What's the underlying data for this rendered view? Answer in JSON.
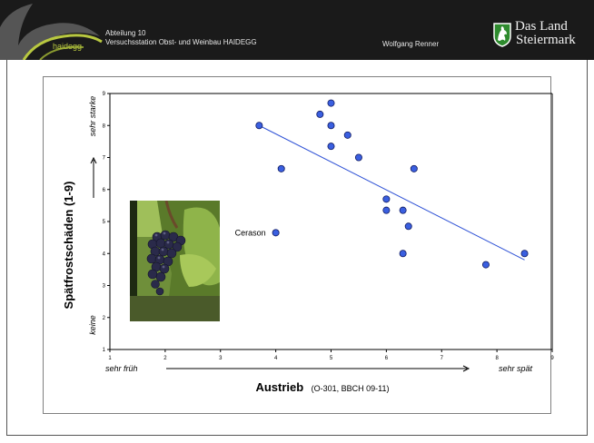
{
  "header": {
    "logo_text": "haidegg",
    "department_line1": "Abteilung 10",
    "department_line2": "Versuchsstation Obst- und Weinbau HAIDEGG",
    "author": "Wolfgang Renner",
    "state_logo_line1": "Das Land",
    "state_logo_line2": "Steiermark"
  },
  "photo": {
    "subject": "grape cluster on vine"
  },
  "chart_data": {
    "type": "scatter",
    "title": "",
    "xlabel": "Austrieb",
    "xlabel_suffix": "(O-301, BBCH 09-11)",
    "ylabel": "Spätfrostschäden  (1-9)",
    "x_low_label": "sehr früh",
    "x_high_label": "sehr spät",
    "y_low_label": "keine",
    "y_high_label": "sehr starke",
    "xlim": [
      1,
      9
    ],
    "ylim": [
      1,
      9
    ],
    "x_ticks": [
      "1",
      "2",
      "3",
      "4",
      "5",
      "6",
      "7",
      "8",
      "9"
    ],
    "y_ticks": [
      "1",
      "2",
      "3",
      "4",
      "5",
      "6",
      "7",
      "8",
      "9"
    ],
    "grid": false,
    "series": [
      {
        "marker_color": "#3a5fe0",
        "points": [
          {
            "x": 3.7,
            "y": 8.0
          },
          {
            "x": 4.1,
            "y": 6.65
          },
          {
            "x": 4.0,
            "y": 4.65,
            "label": "Cerason"
          },
          {
            "x": 4.8,
            "y": 8.35
          },
          {
            "x": 5.0,
            "y": 8.7
          },
          {
            "x": 5.0,
            "y": 8.0
          },
          {
            "x": 5.0,
            "y": 7.35
          },
          {
            "x": 5.3,
            "y": 7.7
          },
          {
            "x": 5.5,
            "y": 7.0
          },
          {
            "x": 6.0,
            "y": 5.7
          },
          {
            "x": 6.0,
            "y": 5.35
          },
          {
            "x": 6.3,
            "y": 5.35
          },
          {
            "x": 6.4,
            "y": 4.85
          },
          {
            "x": 6.3,
            "y": 4.0
          },
          {
            "x": 6.5,
            "y": 6.65
          },
          {
            "x": 7.8,
            "y": 3.65
          },
          {
            "x": 8.5,
            "y": 4.0
          }
        ]
      }
    ],
    "trendline": {
      "color": "#2f52d6",
      "from": {
        "x": 3.7,
        "y": 8.0
      },
      "to": {
        "x": 8.5,
        "y": 3.8
      }
    }
  }
}
